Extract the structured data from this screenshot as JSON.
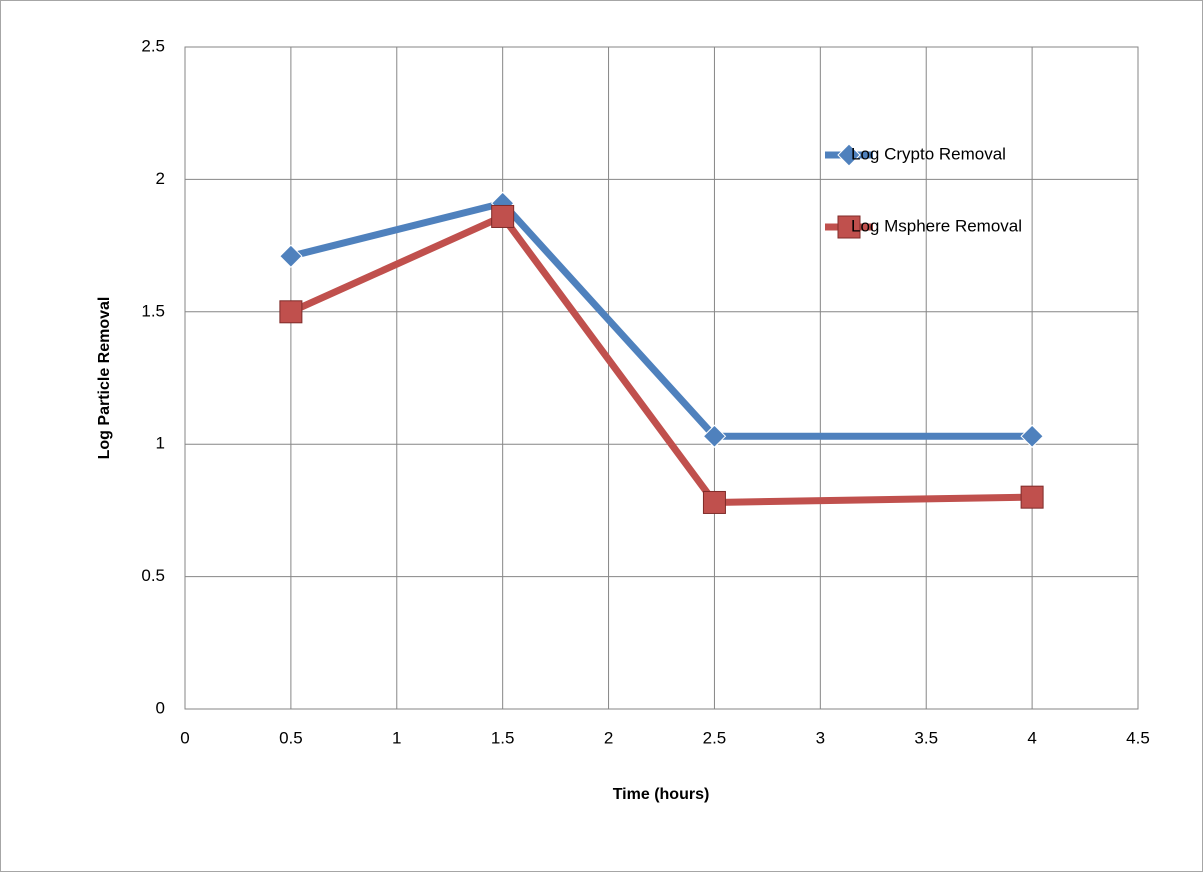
{
  "chart_data": {
    "type": "line",
    "x": [
      0.5,
      1.5,
      2.5,
      4
    ],
    "series": [
      {
        "name": "Log Crypto Removal",
        "color": "#4f81bd",
        "marker": "diamond",
        "values": [
          1.71,
          1.91,
          1.03,
          1.03
        ]
      },
      {
        "name": "Log Msphere Removal",
        "color": "#c0504d",
        "marker": "square",
        "values": [
          1.5,
          1.86,
          0.78,
          0.8
        ]
      }
    ],
    "x_label": "Time (hours)",
    "y_label": "Log Particle Removal",
    "xlim": [
      0,
      4.5
    ],
    "xticks": [
      0,
      0.5,
      1,
      1.5,
      2,
      2.5,
      3,
      3.5,
      4,
      4.5
    ],
    "ylim": [
      0,
      2.5
    ],
    "yticks": [
      0,
      0.5,
      1,
      1.5,
      2,
      2.5
    ],
    "grid": true,
    "legend": "upper right"
  }
}
